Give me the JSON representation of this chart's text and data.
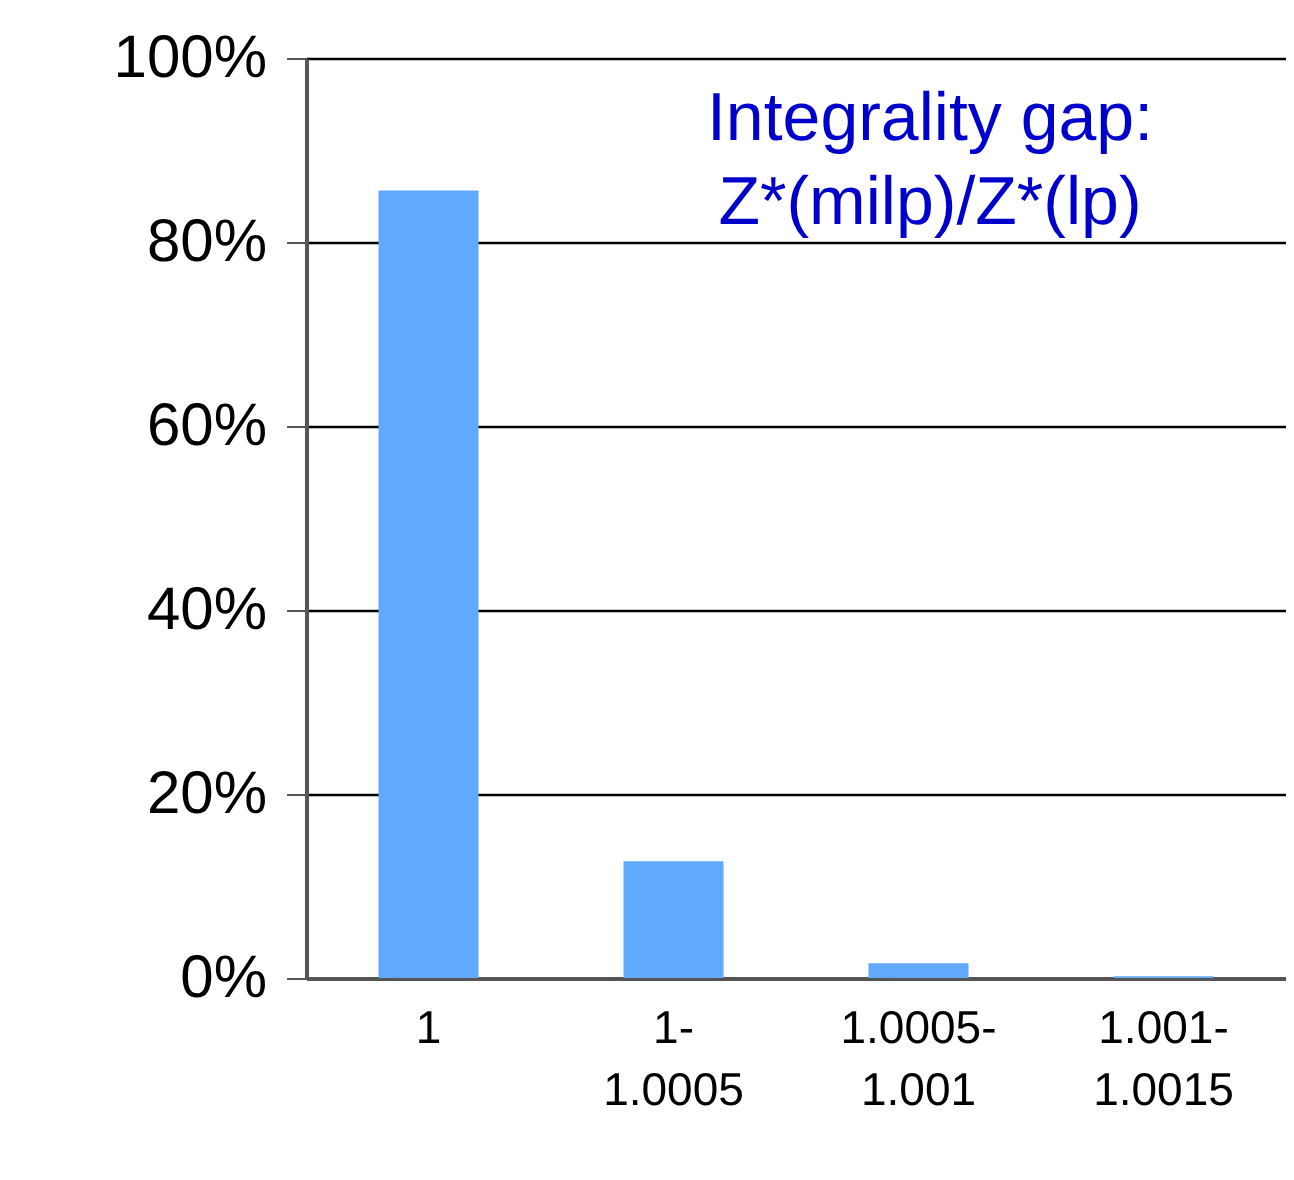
{
  "chart_data": {
    "type": "bar",
    "title": "Integrality gap: Z*(milp)/Z*(lp)",
    "categories": [
      "1",
      "1-1.0005",
      "1.0005-1.001",
      "1.001-1.0015"
    ],
    "values": [
      85.6,
      12.7,
      1.6,
      0.2
    ],
    "color": "#61a8ff",
    "ylim": [
      0,
      100
    ],
    "yticks": [
      {
        "value": 0,
        "label": "0%"
      },
      {
        "value": 20,
        "label": "20%"
      },
      {
        "value": 40,
        "label": "40%"
      },
      {
        "value": 60,
        "label": "60%"
      },
      {
        "value": 80,
        "label": "80%"
      },
      {
        "value": 100,
        "label": "100%"
      }
    ],
    "grid": "y"
  }
}
